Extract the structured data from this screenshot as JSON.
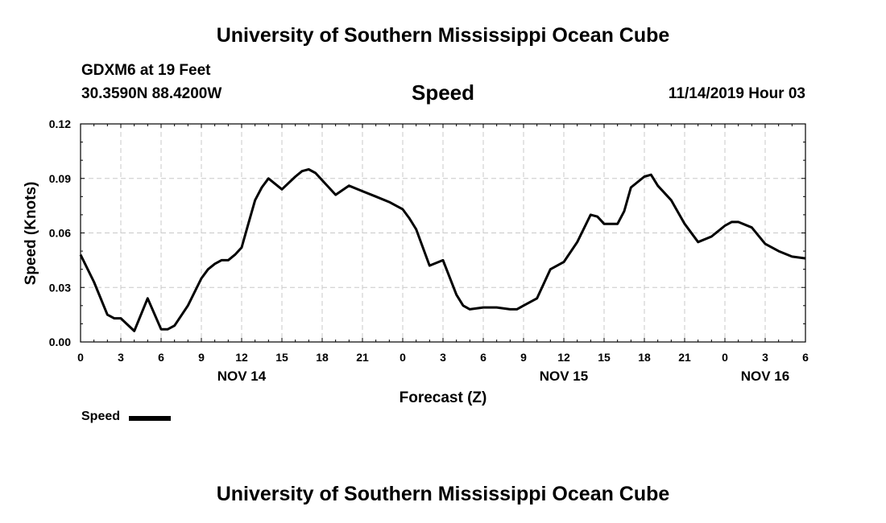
{
  "page": {
    "top_title": "University of Southern Mississippi Ocean Cube",
    "bottom_title": "University of Southern Mississippi Ocean Cube",
    "station": "GDXM6 at 19 Feet",
    "coords": "30.3590N 88.4200W",
    "heading": "Speed",
    "datetime": "11/14/2019 Hour 03"
  },
  "legend": {
    "label": "Speed",
    "color": "#000000"
  },
  "chart_data": {
    "type": "line",
    "title": "Speed",
    "xlabel": "Forecast (Z)",
    "ylabel": "Speed (Knots)",
    "x_unit": "hours from 11/14 00Z",
    "xlim": [
      0,
      54
    ],
    "ylim": [
      0,
      0.12
    ],
    "grid": true,
    "y_ticks": [
      "0.00",
      "0.03",
      "0.06",
      "0.09",
      "0.12"
    ],
    "x_ticks": [
      {
        "x": 0,
        "label": "0"
      },
      {
        "x": 3,
        "label": "3"
      },
      {
        "x": 6,
        "label": "6"
      },
      {
        "x": 9,
        "label": "9"
      },
      {
        "x": 12,
        "label": "12"
      },
      {
        "x": 15,
        "label": "15"
      },
      {
        "x": 18,
        "label": "18"
      },
      {
        "x": 21,
        "label": "21"
      },
      {
        "x": 24,
        "label": "0"
      },
      {
        "x": 27,
        "label": "3"
      },
      {
        "x": 30,
        "label": "6"
      },
      {
        "x": 33,
        "label": "9"
      },
      {
        "x": 36,
        "label": "12"
      },
      {
        "x": 39,
        "label": "15"
      },
      {
        "x": 42,
        "label": "18"
      },
      {
        "x": 45,
        "label": "21"
      },
      {
        "x": 48,
        "label": "0"
      },
      {
        "x": 51,
        "label": "3"
      },
      {
        "x": 54,
        "label": "6"
      }
    ],
    "day_labels": [
      {
        "x": 12,
        "label": "NOV 14"
      },
      {
        "x": 36,
        "label": "NOV 15"
      },
      {
        "x": 51,
        "label": "NOV 16"
      }
    ],
    "legend_position": "bottom-left",
    "series": [
      {
        "name": "Speed",
        "color": "#000000",
        "x": [
          0,
          1,
          2,
          2.5,
          3,
          4,
          5,
          6,
          6.5,
          7,
          8,
          9,
          9.5,
          10,
          10.5,
          11,
          11.5,
          12,
          12.5,
          13,
          13.5,
          14,
          15,
          16,
          16.5,
          17,
          17.5,
          18,
          19,
          20,
          21,
          22,
          23,
          24,
          24.5,
          25,
          26,
          27,
          28,
          28.5,
          29,
          30,
          31,
          32,
          32.5,
          33,
          34,
          35,
          36,
          37,
          38,
          38.5,
          39,
          40,
          40.5,
          41,
          42,
          42.5,
          43,
          44,
          45,
          46,
          47,
          48,
          48.5,
          49,
          50,
          51,
          52,
          53,
          54
        ],
        "y": [
          0.048,
          0.033,
          0.015,
          0.013,
          0.013,
          0.006,
          0.024,
          0.007,
          0.007,
          0.009,
          0.02,
          0.035,
          0.04,
          0.043,
          0.045,
          0.045,
          0.048,
          0.052,
          0.065,
          0.078,
          0.085,
          0.09,
          0.084,
          0.091,
          0.094,
          0.095,
          0.093,
          0.089,
          0.081,
          0.086,
          0.083,
          0.08,
          0.077,
          0.073,
          0.068,
          0.062,
          0.042,
          0.045,
          0.026,
          0.02,
          0.018,
          0.019,
          0.019,
          0.018,
          0.018,
          0.02,
          0.024,
          0.04,
          0.044,
          0.055,
          0.07,
          0.069,
          0.065,
          0.065,
          0.072,
          0.085,
          0.091,
          0.092,
          0.086,
          0.078,
          0.065,
          0.055,
          0.058,
          0.064,
          0.066,
          0.066,
          0.063,
          0.054,
          0.05,
          0.047,
          0.046
        ]
      }
    ]
  }
}
